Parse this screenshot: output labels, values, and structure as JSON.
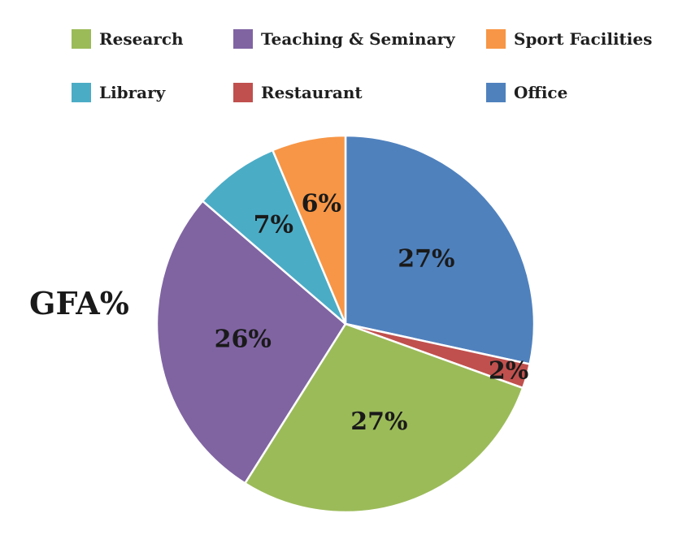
{
  "chart_data": {
    "type": "pie",
    "title": "GFA%",
    "legend_placement": "top",
    "slices": [
      {
        "name": "Office",
        "value": 27,
        "label": "27%",
        "color": "#4F81BD"
      },
      {
        "name": "Restaurant",
        "value": 2,
        "label": "2%",
        "color": "#C0504D"
      },
      {
        "name": "Research",
        "value": 27,
        "label": "27%",
        "color": "#9BBB59"
      },
      {
        "name": "Teaching & Seminary",
        "value": 26,
        "label": "26%",
        "color": "#8064A2"
      },
      {
        "name": "Library",
        "value": 7,
        "label": "7%",
        "color": "#4BACC6"
      },
      {
        "name": "Sport Facilities",
        "value": 6,
        "label": "6%",
        "color": "#F79646"
      }
    ],
    "legend": [
      {
        "label": "Research",
        "color": "#9BBB59"
      },
      {
        "label": "Teaching & Seminary",
        "color": "#8064A2"
      },
      {
        "label": "Sport Facilities",
        "color": "#F79646"
      },
      {
        "label": "Library",
        "color": "#4BACC6"
      },
      {
        "label": "Restaurant",
        "color": "#C0504D"
      },
      {
        "label": "Office",
        "color": "#4F81BD"
      }
    ]
  }
}
